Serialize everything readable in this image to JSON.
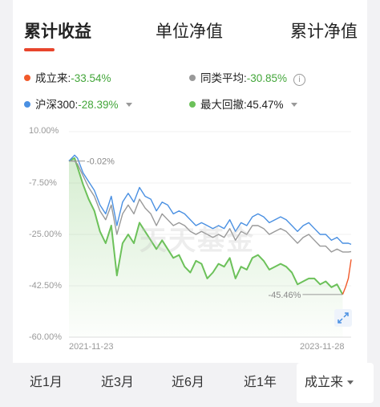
{
  "tabs": [
    {
      "label": "累计收益",
      "active": true
    },
    {
      "label": "单位净值",
      "active": false
    },
    {
      "label": "累计净值",
      "active": false
    }
  ],
  "legend": {
    "fund": {
      "label": "成立来:",
      "value": "-33.54%",
      "color": "#f15a2b"
    },
    "peer": {
      "label": "同类平均:",
      "value": "-30.85%",
      "color": "#999999"
    },
    "index": {
      "label": "沪深300:",
      "value": "-28.39%",
      "color": "#4a90e2"
    },
    "drawdown": {
      "label": "最大回撤:",
      "value": "45.47%",
      "color": "#6cc15a"
    }
  },
  "chart": {
    "start_annotation": "-0.02%",
    "drawdown_annotation": "-45.46%",
    "watermark": "天天基金"
  },
  "chart_data": {
    "type": "line",
    "y_ticks": [
      "10.00%",
      "-7.50%",
      "-25.00%",
      "-42.50%",
      "-60.00%"
    ],
    "ylim": [
      -60,
      10
    ],
    "x_ticks": [
      "2021-11-23",
      "2023-11-28"
    ],
    "xlim": [
      0,
      100
    ],
    "series": [
      {
        "name": "沪深300",
        "color": "#4a90e2",
        "x": [
          0,
          2,
          3,
          5,
          7,
          9,
          11,
          13,
          15,
          17,
          19,
          21,
          23,
          25,
          27,
          29,
          31,
          33,
          35,
          37,
          39,
          41,
          43,
          45,
          47,
          49,
          51,
          53,
          55,
          57,
          59,
          61,
          63,
          65,
          67,
          69,
          71,
          73,
          75,
          77,
          79,
          81,
          83,
          85,
          87,
          89,
          91,
          93,
          95,
          97,
          99,
          100
        ],
        "y": [
          0,
          2,
          1,
          -4,
          -7,
          -10,
          -15,
          -18,
          -12,
          -22,
          -14,
          -11,
          -14,
          -9,
          -12,
          -13,
          -17,
          -14,
          -15,
          -18,
          -17,
          -18,
          -20,
          -22,
          -21,
          -22,
          -23,
          -22,
          -23,
          -20,
          -24,
          -21,
          -22,
          -19,
          -18,
          -19,
          -21,
          -20,
          -19,
          -20,
          -22,
          -24,
          -22,
          -21,
          -23,
          -25,
          -25,
          -27,
          -26,
          -28,
          -28,
          -28.4
        ]
      },
      {
        "name": "同类平均",
        "color": "#999999",
        "x": [
          0,
          2,
          3,
          5,
          7,
          9,
          11,
          13,
          15,
          17,
          19,
          21,
          23,
          25,
          27,
          29,
          31,
          33,
          35,
          37,
          39,
          41,
          43,
          45,
          47,
          49,
          51,
          53,
          55,
          57,
          59,
          61,
          63,
          65,
          67,
          69,
          71,
          73,
          75,
          77,
          79,
          81,
          83,
          85,
          87,
          89,
          91,
          93,
          95,
          97,
          99,
          100
        ],
        "y": [
          0,
          0,
          -1,
          -5,
          -9,
          -12,
          -17,
          -20,
          -15,
          -25,
          -18,
          -15,
          -18,
          -13,
          -16,
          -18,
          -22,
          -18,
          -20,
          -22,
          -21,
          -22,
          -24,
          -25,
          -24,
          -25,
          -26,
          -25,
          -26,
          -23,
          -27,
          -24,
          -25,
          -22,
          -22,
          -23,
          -25,
          -24,
          -23,
          -24,
          -26,
          -28,
          -26,
          -25,
          -27,
          -29,
          -29,
          -31,
          -30,
          -31,
          -31,
          -30.85
        ]
      },
      {
        "name": "成立来",
        "color": "#6cc15a",
        "fill": true,
        "x": [
          0,
          2,
          3,
          5,
          7,
          9,
          11,
          13,
          15,
          17,
          19,
          21,
          23,
          25,
          27,
          29,
          31,
          33,
          35,
          37,
          39,
          41,
          43,
          45,
          47,
          49,
          51,
          53,
          55,
          57,
          59,
          61,
          63,
          65,
          67,
          69,
          71,
          73,
          75,
          77,
          79,
          81,
          83,
          85,
          87,
          89,
          91,
          93,
          95,
          97
        ],
        "y": [
          0,
          1,
          -2,
          -8,
          -13,
          -17,
          -24,
          -28,
          -22,
          -39,
          -28,
          -25,
          -28,
          -21,
          -24,
          -27,
          -30,
          -27,
          -30,
          -33,
          -32,
          -36,
          -38,
          -34,
          -35,
          -40,
          -38,
          -35,
          -36,
          -33,
          -40,
          -36,
          -37,
          -33,
          -32,
          -34,
          -37,
          -36,
          -35,
          -36,
          -38,
          -42,
          -41,
          -40,
          -40,
          -42,
          -41,
          -43,
          -42,
          -45.46
        ]
      },
      {
        "name": "成立来-recovery",
        "color": "#f15a2b",
        "x": [
          97,
          98,
          99,
          100
        ],
        "y": [
          -45.46,
          -43,
          -40,
          -33.54
        ]
      }
    ]
  },
  "periods": [
    {
      "label": "近1月"
    },
    {
      "label": "近3月"
    },
    {
      "label": "近6月"
    },
    {
      "label": "近1年"
    },
    {
      "label": "成立来",
      "selected": true
    }
  ]
}
